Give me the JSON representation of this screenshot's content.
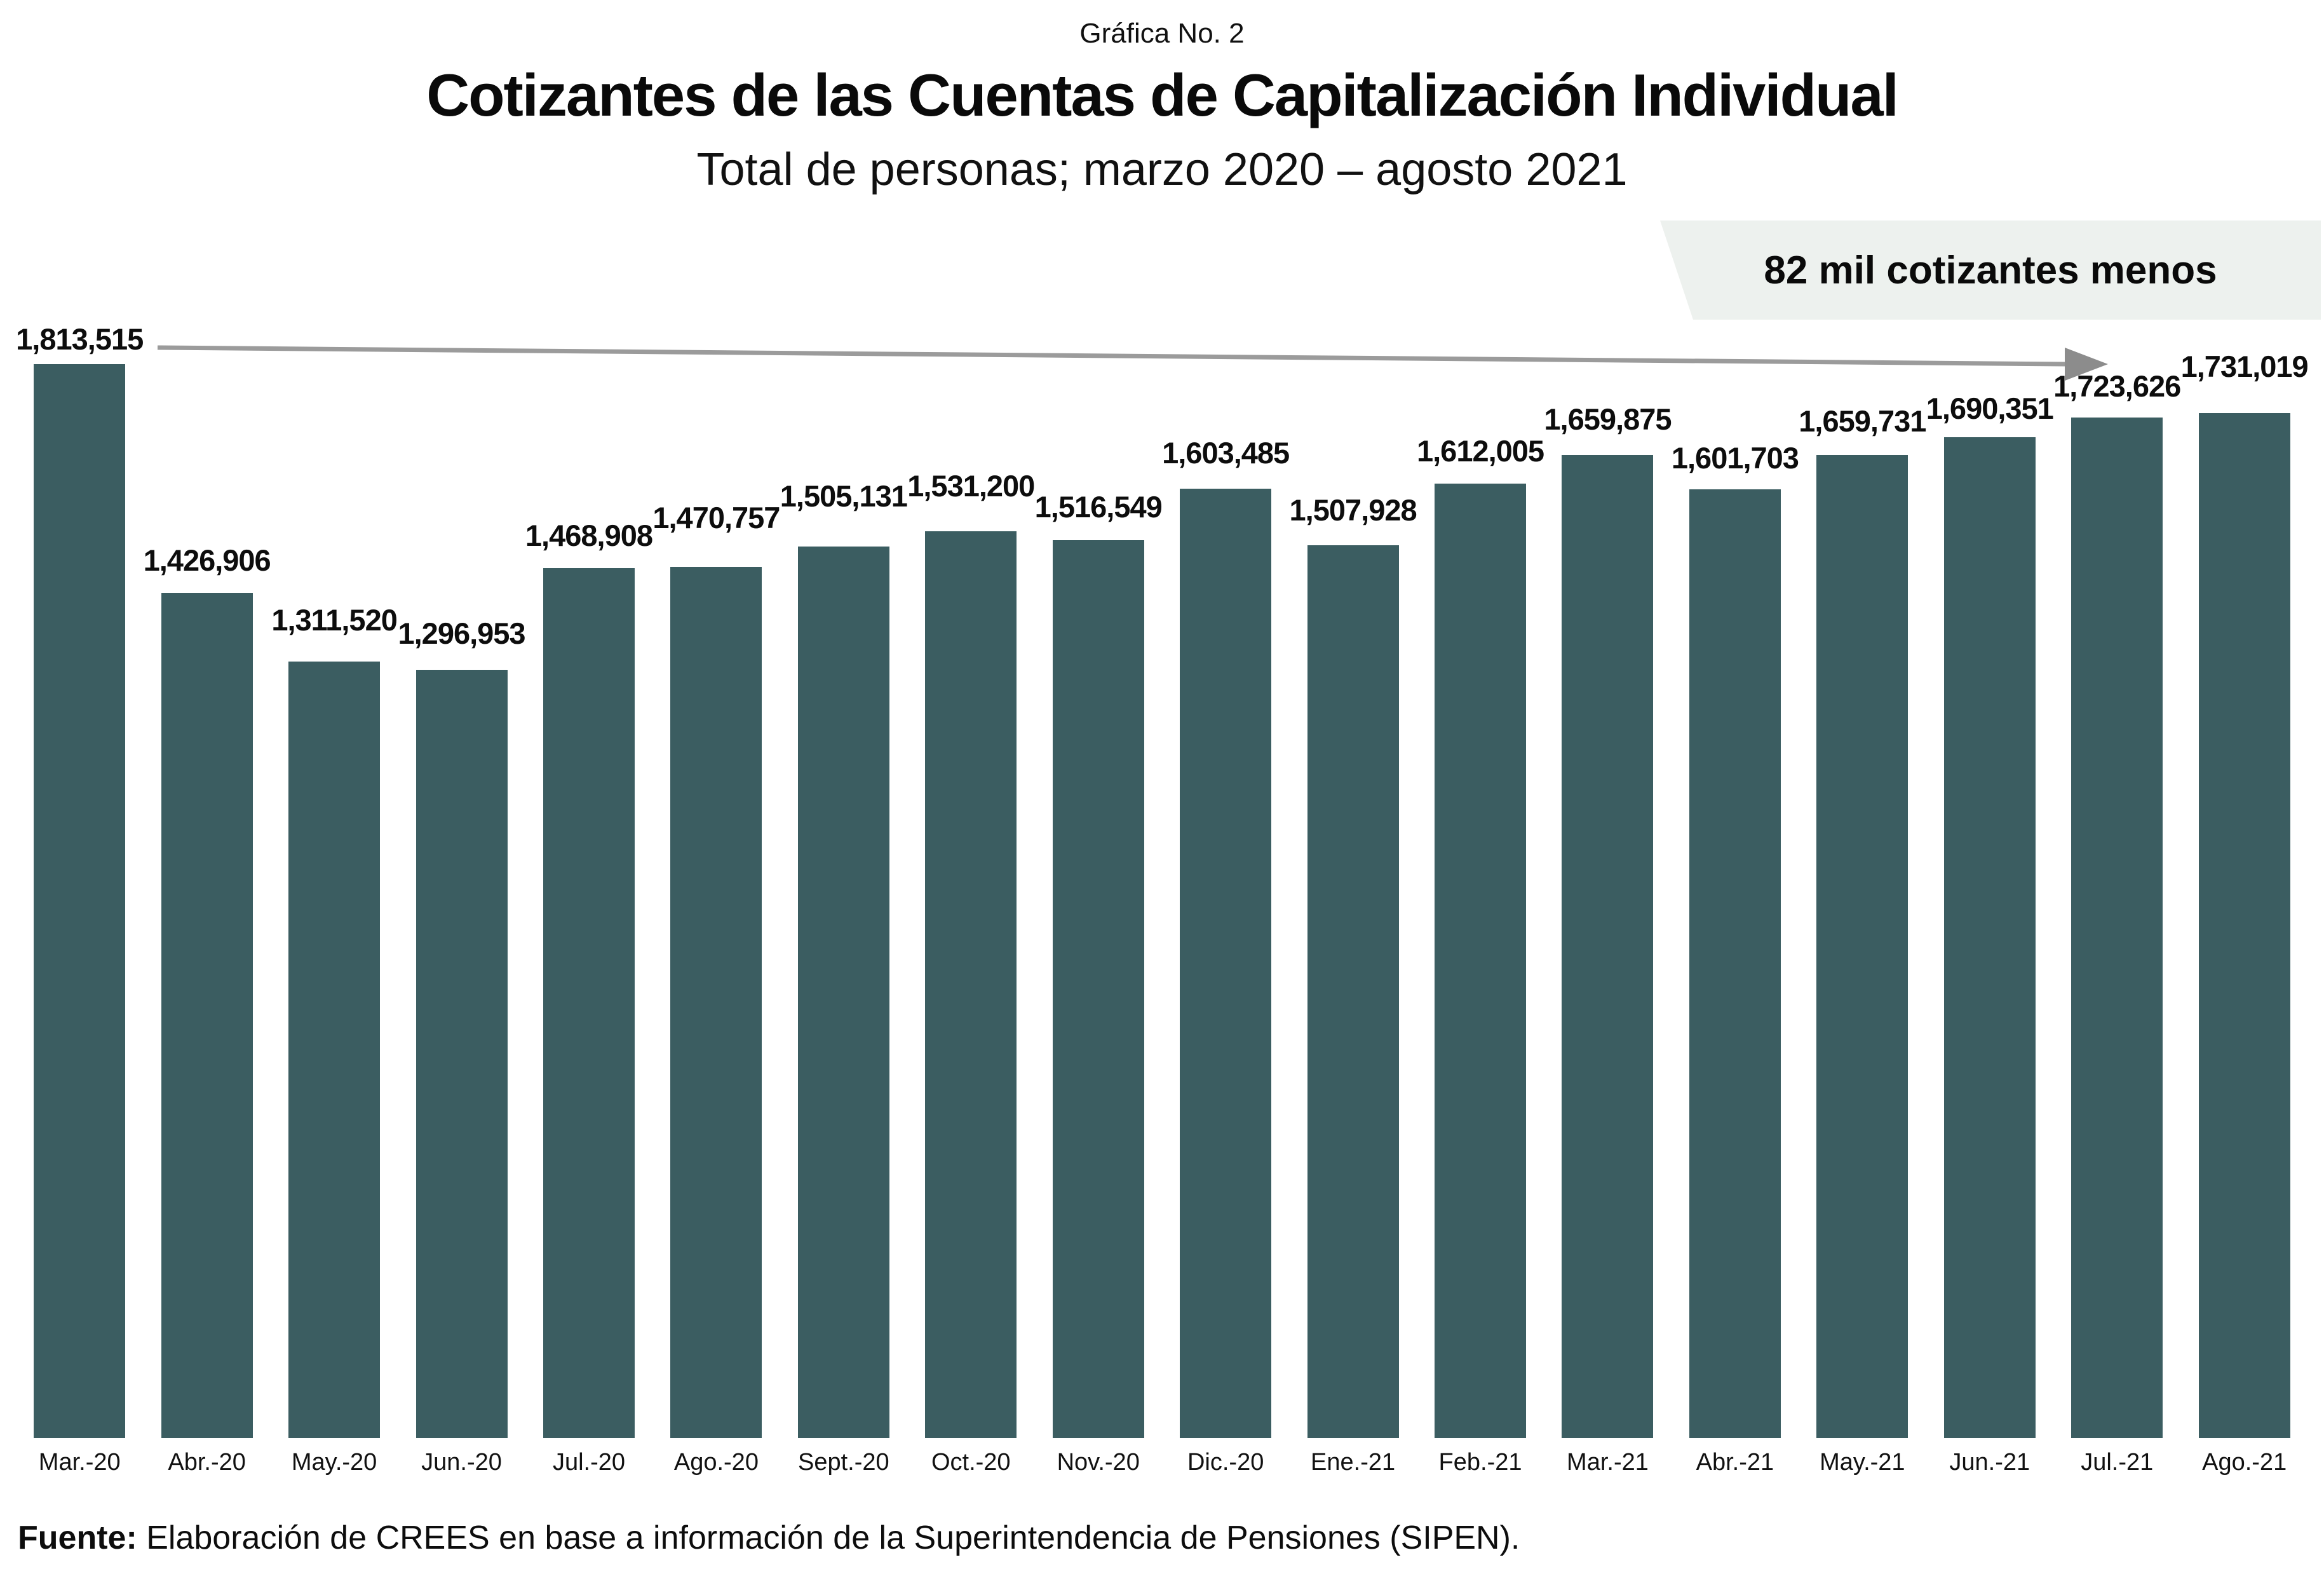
{
  "header": {
    "caption": "Gráfica No. 2",
    "title": "Cotizantes de las Cuentas de Capitalización Individual",
    "subtitle": "Total de personas; marzo 2020 – agosto 2021"
  },
  "annotation": {
    "text": "82 mil cotizantes menos",
    "box_color": "#edf1ee"
  },
  "arrow": {
    "color": "#9b9b9b",
    "head_color": "#8c8c8c"
  },
  "footer": {
    "source_label": "Fuente:",
    "source_text": " Elaboración de CREES en base a información de la Superintendencia de Pensiones (SIPEN)."
  },
  "chart_data": {
    "type": "bar",
    "title": "Cotizantes de las Cuentas de Capitalización Individual",
    "subtitle": "Total de personas; marzo 2020 – agosto 2021",
    "caption": "Gráfica No. 2",
    "categories": [
      "Mar.-20",
      "Abr.-20",
      "May.-20",
      "Jun.-20",
      "Jul.-20",
      "Ago.-20",
      "Sept.-20",
      "Oct.-20",
      "Nov.-20",
      "Dic.-20",
      "Ene.-21",
      "Feb.-21",
      "Mar.-21",
      "Abr.-21",
      "May.-21",
      "Jun.-21",
      "Jul.-21",
      "Ago.-21"
    ],
    "values": [
      1813515,
      1426906,
      1311520,
      1296953,
      1468908,
      1470757,
      1505131,
      1531200,
      1516549,
      1603485,
      1507928,
      1612005,
      1659875,
      1601703,
      1659731,
      1690351,
      1723626,
      1731019
    ],
    "bar_color": "#3b5d61",
    "ylim": [
      0,
      1813515
    ],
    "grid": false,
    "legend": false,
    "annotation": "82 mil cotizantes menos",
    "xlabel": "",
    "ylabel": ""
  }
}
